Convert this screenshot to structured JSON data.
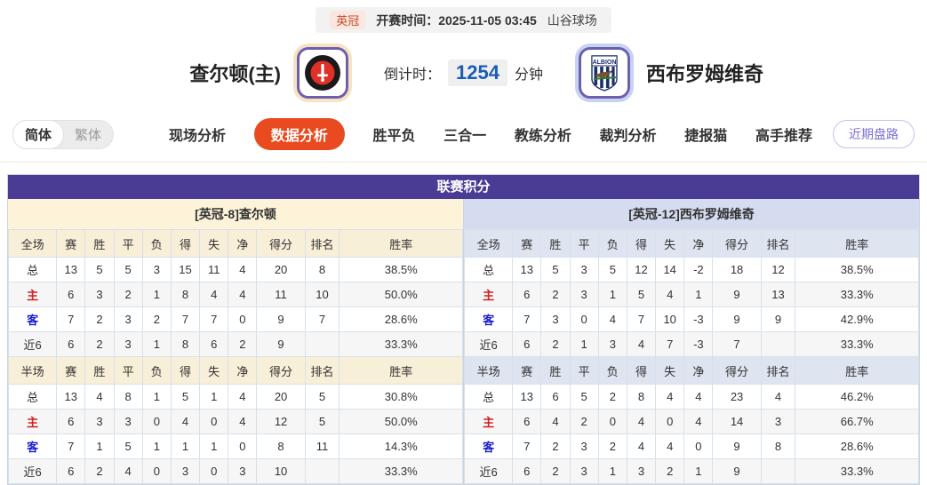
{
  "topbar": {
    "league": "英冠",
    "kickoff_label": "开赛时间：",
    "kickoff_time": "2025-11-05 03:45",
    "venue": "山谷球场"
  },
  "match": {
    "home_name": "查尔顿(主)",
    "away_name": "西布罗姆维奇",
    "home_logo": "charlton-crest-icon",
    "away_logo": "west-brom-crest-icon",
    "away_logo_text": "ALBION",
    "countdown_label": "倒计时：",
    "countdown_value": "1254",
    "countdown_unit": "分钟"
  },
  "nav": {
    "lang_simplified": "简体",
    "lang_traditional": "繁体",
    "tabs": [
      "现场分析",
      "数据分析",
      "胜平负",
      "三合一",
      "教练分析",
      "裁判分析",
      "捷报猫",
      "高手推荐"
    ],
    "active_tab": "数据分析",
    "recent_button": "近期盘路"
  },
  "colors": {
    "panel_header_purple": "#4a3b94",
    "active_tab_orange": "#ea4a1f",
    "home_tint_cream": "#fcf3d8",
    "away_tint_blue": "#d5dcef",
    "home_row_red": "#cc2222",
    "away_row_blue": "#1a1ecc",
    "countdown_blue": "#1b5cb8",
    "league_badge_red": "#c4492b"
  },
  "league_table": {
    "title": "联赛积分",
    "columns": [
      "赛",
      "胜",
      "平",
      "负",
      "得",
      "失",
      "净",
      "得分",
      "排名",
      "胜率"
    ],
    "sections": [
      {
        "key": "full",
        "label": "全场"
      },
      {
        "key": "half",
        "label": "半场"
      }
    ],
    "teams": [
      {
        "header": "[英冠-8]查尔顿",
        "full": [
          [
            "总",
            "13",
            "5",
            "5",
            "3",
            "15",
            "11",
            "4",
            "20",
            "8",
            "38.5%"
          ],
          [
            "主",
            "6",
            "3",
            "2",
            "1",
            "8",
            "4",
            "4",
            "11",
            "10",
            "50.0%"
          ],
          [
            "客",
            "7",
            "2",
            "3",
            "2",
            "7",
            "7",
            "0",
            "9",
            "7",
            "28.6%"
          ],
          [
            "近6",
            "6",
            "2",
            "3",
            "1",
            "8",
            "6",
            "2",
            "9",
            "",
            "33.3%"
          ]
        ],
        "half": [
          [
            "总",
            "13",
            "4",
            "8",
            "1",
            "5",
            "1",
            "4",
            "20",
            "5",
            "30.8%"
          ],
          [
            "主",
            "6",
            "3",
            "3",
            "0",
            "4",
            "0",
            "4",
            "12",
            "5",
            "50.0%"
          ],
          [
            "客",
            "7",
            "1",
            "5",
            "1",
            "1",
            "1",
            "0",
            "8",
            "11",
            "14.3%"
          ],
          [
            "近6",
            "6",
            "2",
            "4",
            "0",
            "3",
            "0",
            "3",
            "10",
            "",
            "33.3%"
          ]
        ]
      },
      {
        "header": "[英冠-12]西布罗姆维奇",
        "full": [
          [
            "总",
            "13",
            "5",
            "3",
            "5",
            "12",
            "14",
            "-2",
            "18",
            "12",
            "38.5%"
          ],
          [
            "主",
            "6",
            "2",
            "3",
            "1",
            "5",
            "4",
            "1",
            "9",
            "13",
            "33.3%"
          ],
          [
            "客",
            "7",
            "3",
            "0",
            "4",
            "7",
            "10",
            "-3",
            "9",
            "9",
            "42.9%"
          ],
          [
            "近6",
            "6",
            "2",
            "1",
            "3",
            "4",
            "7",
            "-3",
            "7",
            "",
            "33.3%"
          ]
        ],
        "half": [
          [
            "总",
            "13",
            "6",
            "5",
            "2",
            "8",
            "4",
            "4",
            "23",
            "4",
            "46.2%"
          ],
          [
            "主",
            "6",
            "4",
            "2",
            "0",
            "4",
            "0",
            "4",
            "14",
            "3",
            "66.7%"
          ],
          [
            "客",
            "7",
            "2",
            "3",
            "2",
            "4",
            "4",
            "0",
            "9",
            "8",
            "28.6%"
          ],
          [
            "近6",
            "6",
            "2",
            "3",
            "1",
            "3",
            "2",
            "1",
            "9",
            "",
            "33.3%"
          ]
        ]
      }
    ]
  }
}
